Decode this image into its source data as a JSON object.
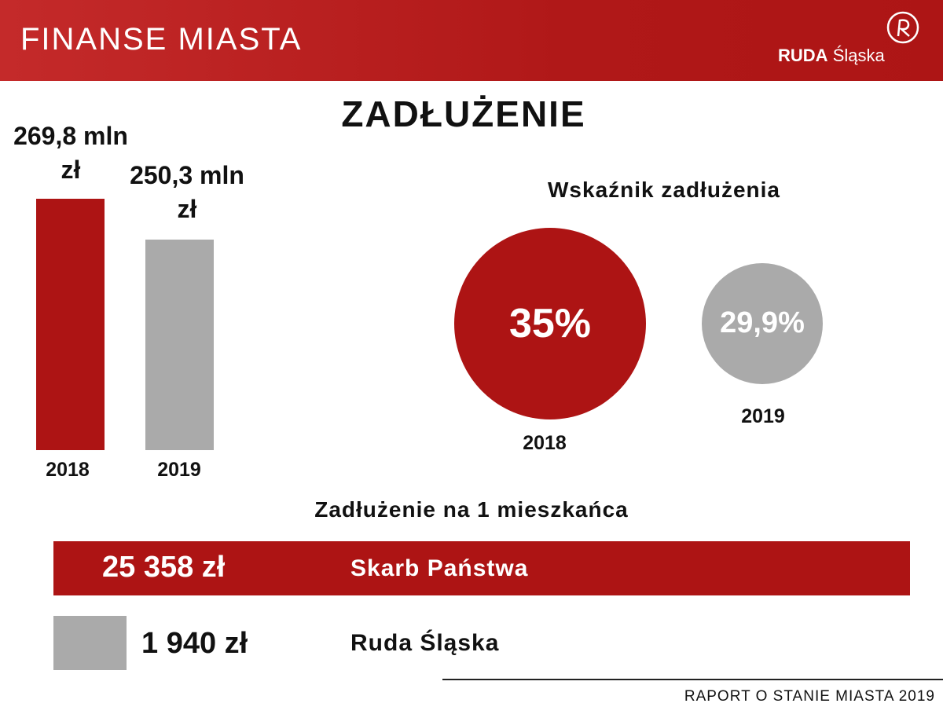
{
  "header": {
    "title": "FINANSE MIASTA",
    "logo_bold": "RUDA",
    "logo_regular": "Śląska"
  },
  "main_title": "ZADŁUŻENIE",
  "colors": {
    "red": "#ad1414",
    "gray": "#aaaaaa"
  },
  "chart_data": [
    {
      "type": "bar",
      "categories": [
        "2018",
        "2019"
      ],
      "values": [
        269.8,
        250.3
      ],
      "value_labels": [
        "269,8 mln zł",
        "250,3 mln zł"
      ],
      "unit": "mln zł",
      "colors": [
        "#ad1414",
        "#aaaaaa"
      ]
    },
    {
      "type": "bubble",
      "title": "Wskaźnik zadłużenia",
      "categories": [
        "2018",
        "2019"
      ],
      "values": [
        35,
        29.9
      ],
      "value_labels": [
        "35%",
        "29,9%"
      ],
      "colors": [
        "#ad1414",
        "#aaaaaa"
      ]
    },
    {
      "type": "table",
      "title": "Zadłużenie na 1 mieszkańca",
      "rows": [
        {
          "value": "25 358 zł",
          "label": "Skarb Państwa"
        },
        {
          "value": "1 940 zł",
          "label": "Ruda Śląska"
        }
      ]
    }
  ],
  "footer": "RAPORT O STANIE MIASTA 2019"
}
